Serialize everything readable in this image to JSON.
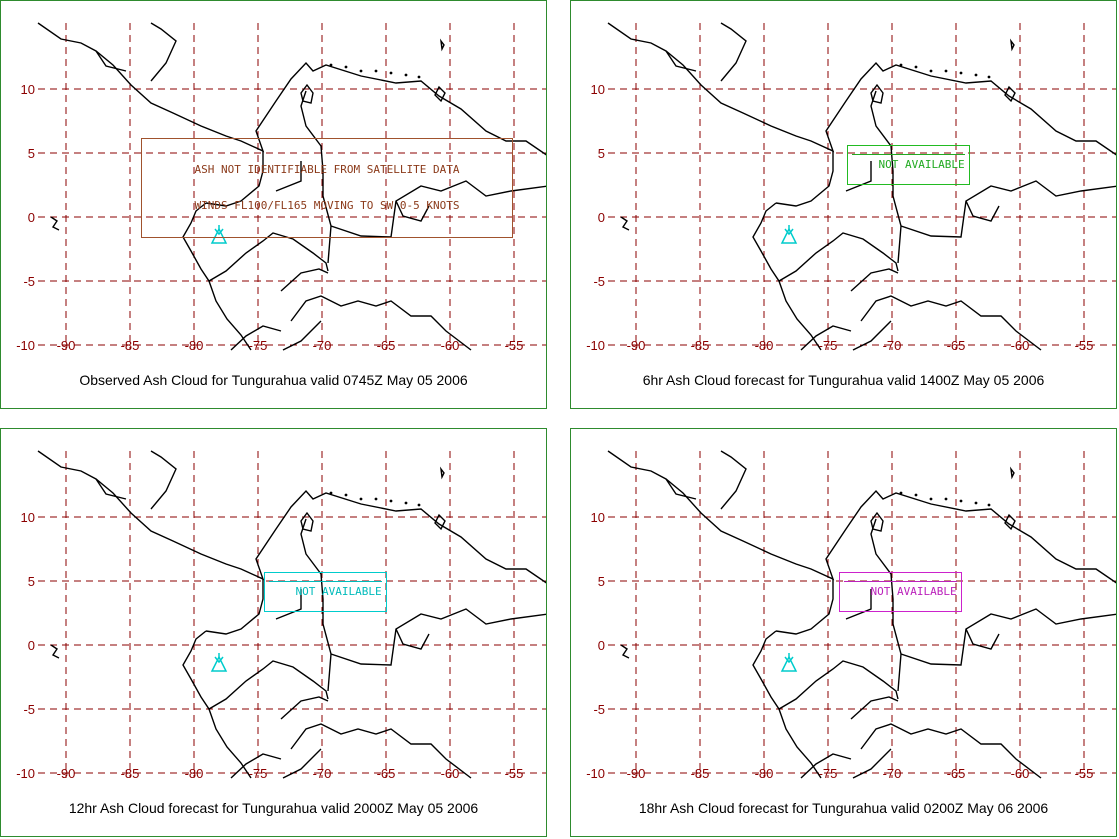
{
  "axis": {
    "lat_ticks": [
      "10",
      "5",
      "0",
      "-5",
      "-10"
    ],
    "lon_ticks": [
      "-90",
      "-85",
      "-80",
      "-75",
      "-70",
      "-65",
      "-60",
      "-55"
    ]
  },
  "panels": [
    {
      "caption": "Observed Ash Cloud for Tungurahua valid 0745Z May 05 2006",
      "note_line1": "ASH NOT IDENTIFIABLE FROM SATELLITE DATA",
      "note_line2": "WINDS FL100/FL165 MOVING TO SW 0-5 KNOTS"
    },
    {
      "caption": "6hr Ash Cloud forecast for Tungurahua valid 1400Z May 05 2006",
      "note": "NOT AVAILABLE"
    },
    {
      "caption": "12hr Ash Cloud forecast for Tungurahua valid 2000Z May 05 2006",
      "note": "NOT AVAILABLE"
    },
    {
      "caption": "18hr Ash Cloud forecast for Tungurahua valid 0200Z May 06 2006",
      "note": "NOT AVAILABLE"
    }
  ],
  "colors": {
    "grid": "#8b0000",
    "tick_label": "#8b0000",
    "panel_border": "#2e8b2e",
    "volcano": "#00cccc",
    "note_observed": "#8b3a1a",
    "note_6hr": "#22aa22",
    "note_12hr": "#00bbbb",
    "note_18hr": "#bb22bb"
  },
  "volcano_icon": "volcano-icon"
}
